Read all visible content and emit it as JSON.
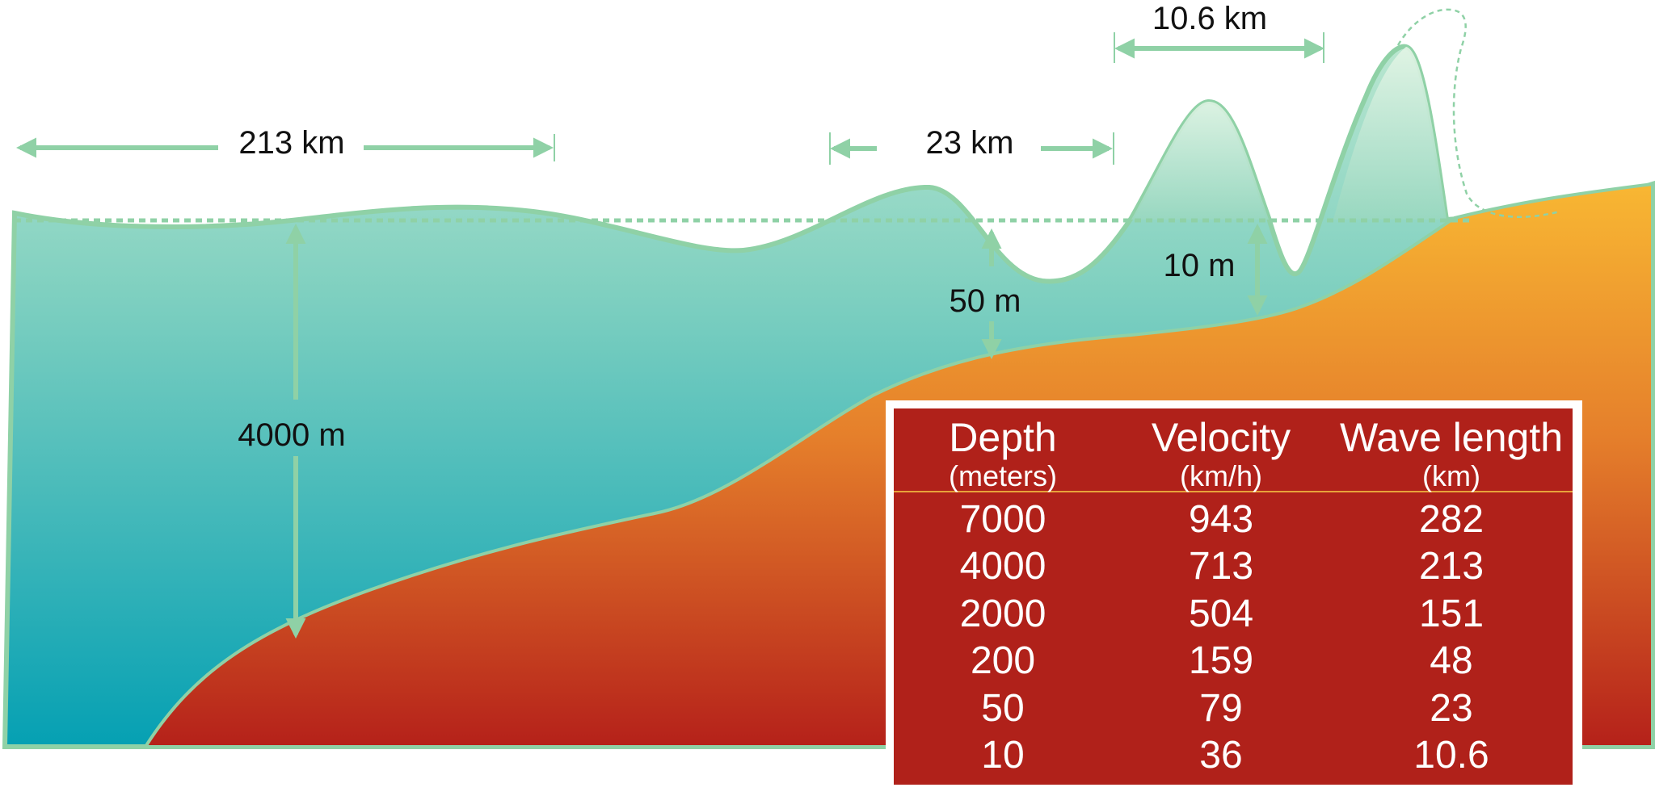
{
  "labels": {
    "wavelength_213": "213 km",
    "wavelength_23": "23 km",
    "wavelength_10_6": "10.6 km",
    "depth_4000": "4000 m",
    "height_50": "50 m",
    "height_10": "10 m"
  },
  "table": {
    "headers": [
      {
        "name": "Depth",
        "unit": "(meters)"
      },
      {
        "name": "Velocity",
        "unit": "(km/h)"
      },
      {
        "name": "Wave length",
        "unit": "(km)"
      }
    ],
    "rows": [
      [
        "7000",
        "943",
        "282"
      ],
      [
        "4000",
        "713",
        "213"
      ],
      [
        "2000",
        "504",
        "151"
      ],
      [
        "200",
        "159",
        "48"
      ],
      [
        "50",
        "79",
        "23"
      ],
      [
        "10",
        "36",
        "10.6"
      ]
    ]
  },
  "colors": {
    "water_top": "#a9dfc8",
    "water_bottom": "#0aa0b0",
    "ground_top": "#f7b733",
    "ground_bottom": "#b0211a",
    "arrow": "#8fd1a6",
    "table_bg": "#b0211a"
  }
}
